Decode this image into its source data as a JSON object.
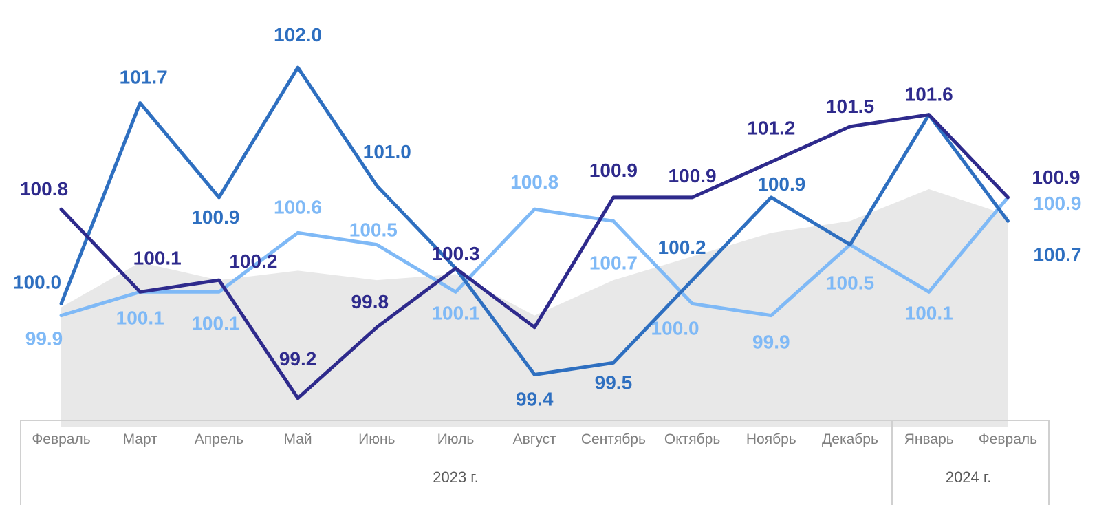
{
  "chart_data": {
    "type": "line",
    "categories": [
      "Февраль",
      "Март",
      "Апрель",
      "Май",
      "Июнь",
      "Июль",
      "Август",
      "Сентябрь",
      "Октябрь",
      "Ноябрь",
      "Декабрь",
      "Январь",
      "Февраль"
    ],
    "year_groups": [
      {
        "label": "2023 г.",
        "from": 0,
        "to": 10
      },
      {
        "label": "2024 г.",
        "from": 11,
        "to": 12
      }
    ],
    "ylim": [
      98.96,
      102.28
    ],
    "background_area": {
      "color": "#e8e8e8",
      "values": [
        99.97,
        100.35,
        100.2,
        100.28,
        100.2,
        100.25,
        99.9,
        100.2,
        100.4,
        100.6,
        100.7,
        100.97,
        100.75
      ]
    },
    "series": [
      {
        "color": "#2e2a8c",
        "values": [
          100.8,
          100.1,
          100.2,
          99.2,
          99.8,
          100.3,
          99.8,
          100.9,
          100.9,
          101.2,
          101.5,
          101.6,
          100.9
        ],
        "labels": [
          "100.8",
          "100.1",
          "100.2",
          "99.2",
          "99.8",
          "100.3",
          "",
          "100.9",
          "100.9",
          "101.2",
          "101.5",
          "101.6",
          "100.9"
        ]
      },
      {
        "color": "#2e6fc0",
        "values": [
          100.0,
          101.7,
          100.9,
          102.0,
          101.0,
          100.3,
          99.4,
          99.5,
          100.2,
          100.9,
          100.5,
          101.6,
          100.7
        ],
        "labels": [
          "100.0",
          "101.7",
          "100.9",
          "102.0",
          "101.0",
          "",
          "99.4",
          "99.5",
          "100.2",
          "100.9",
          "",
          "",
          "100.7"
        ]
      },
      {
        "color": "#7fb9f6",
        "values": [
          99.9,
          100.1,
          100.1,
          100.6,
          100.5,
          100.1,
          100.8,
          100.7,
          100.0,
          99.9,
          100.5,
          100.1,
          100.9
        ],
        "labels": [
          "99.9",
          "100.1",
          "100.1",
          "100.6",
          "100.5",
          "100.1",
          "100.8",
          "100.7",
          "100.0",
          "99.9",
          "100.5",
          "100.1",
          "100.9"
        ]
      }
    ]
  }
}
